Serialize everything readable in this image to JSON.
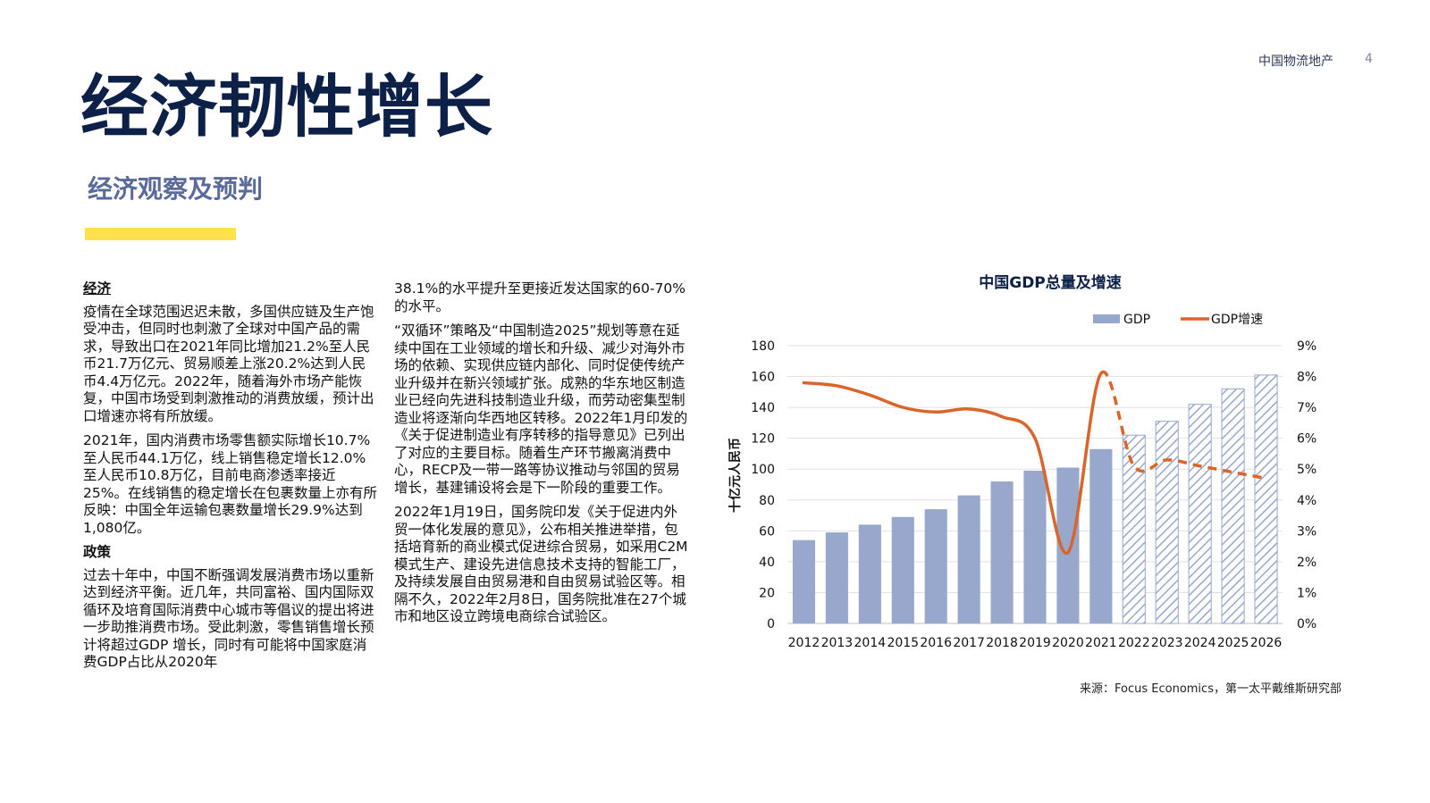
{
  "header": {
    "brand": "中国物流地产",
    "page_number": "4"
  },
  "title": "经济韧性增长",
  "subtitle": "经济观察及预判",
  "accent_color": "#ffe14d",
  "left_column": {
    "section1_heading": "经济",
    "para1": "疫情在全球范围迟迟未散，多国供应链及生产饱受冲击，但同时也刺激了全球对中国产品的需求，导致出口在2021年同比增加21.2%至人民币21.7万亿元、贸易顺差上涨20.2%达到人民币4.4万亿元。2022年，随着海外市场产能恢复，中国市场受到刺激推动的消费放缓，预计出口增速亦将有所放缓。",
    "para2": "2021年，国内消费市场零售额实际增长10.7%至人民币44.1万亿，线上销售稳定增长12.0%至人民币10.8万亿，目前电商渗透率接近25%。在线销售的稳定增长在包裹数量上亦有所反映：中国全年运输包裹数量增长29.9%达到1,080亿。",
    "section2_heading": "政策",
    "para3": "过去十年中，中国不断强调发展消费市场以重新达到经济平衡。近几年，共同富裕、国内国际双循环及培育国际消费中心城市等倡议的提出将进一步助推消费市场。受此刺激，零售销售增长预计将超过GDP 增长，同时有可能将中国家庭消费GDP占比从2020年"
  },
  "right_column": {
    "para1": "38.1%的水平提升至更接近发达国家的60-70%的水平。",
    "para2": "“双循环”策略及“中国制造2025”规划等意在延续中国在工业领域的增长和升级、减少对海外市场的依赖、实现供应链内部化、同时促使传统产业升级并在新兴领域扩张。成熟的华东地区制造业已经向先进科技制造业升级，而劳动密集型制造业将逐渐向华西地区转移。2022年1月印发的《关于促进制造业有序转移的指导意见》已列出了对应的主要目标。随着生产环节搬离消费中心，RECP及一带一路等协议推动与邻国的贸易增长，基建铺设将会是下一阶段的重要工作。",
    "para3": "2022年1月19日，国务院印发《关于促进内外贸一体化发展的意见》，公布相关推进举措，包括培育新的商业模式促进综合贸易，如采用C2M模式生产、建设先进信息技术支持的智能工厂，及持续发展自由贸易港和自由贸易试验区等。相隔不久，2022年2月8日，国务院批准在27个城市和地区设立跨境电商综合试验区。"
  },
  "source": "来源：Focus Economics，第一太平戴维斯研究部",
  "chart_data": {
    "type": "bar",
    "title": "中国GDP总量及增速",
    "ylabel": "十亿元人民币",
    "ylim": [
      0,
      180
    ],
    "y_ticks": [
      "0",
      "20",
      "40",
      "60",
      "80",
      "100",
      "120",
      "140",
      "160",
      "180"
    ],
    "y2lim": [
      0,
      9
    ],
    "y2_ticks": [
      "0%",
      "1%",
      "2%",
      "3%",
      "4%",
      "5%",
      "6%",
      "7%",
      "8%",
      "9%"
    ],
    "categories": [
      "2012",
      "2013",
      "2014",
      "2015",
      "2016",
      "2017",
      "2018",
      "2019",
      "2020",
      "2021",
      "2022",
      "2023",
      "2024",
      "2025",
      "2026"
    ],
    "legend_position": "top-right",
    "forecast_from": "2022",
    "series": [
      {
        "name": "GDP",
        "kind": "bar",
        "axis": "left",
        "color": "#97a8cc",
        "values": [
          54,
          59,
          64,
          69,
          74,
          83,
          92,
          99,
          101,
          113,
          122,
          131,
          142,
          152,
          161
        ]
      },
      {
        "name": "GDP增速",
        "kind": "line",
        "axis": "right",
        "color": "#d9652a",
        "values": [
          7.8,
          7.7,
          7.4,
          7.0,
          6.85,
          6.95,
          6.7,
          6.0,
          2.3,
          8.1,
          5.1,
          5.3,
          5.1,
          4.9,
          4.7
        ]
      }
    ]
  }
}
